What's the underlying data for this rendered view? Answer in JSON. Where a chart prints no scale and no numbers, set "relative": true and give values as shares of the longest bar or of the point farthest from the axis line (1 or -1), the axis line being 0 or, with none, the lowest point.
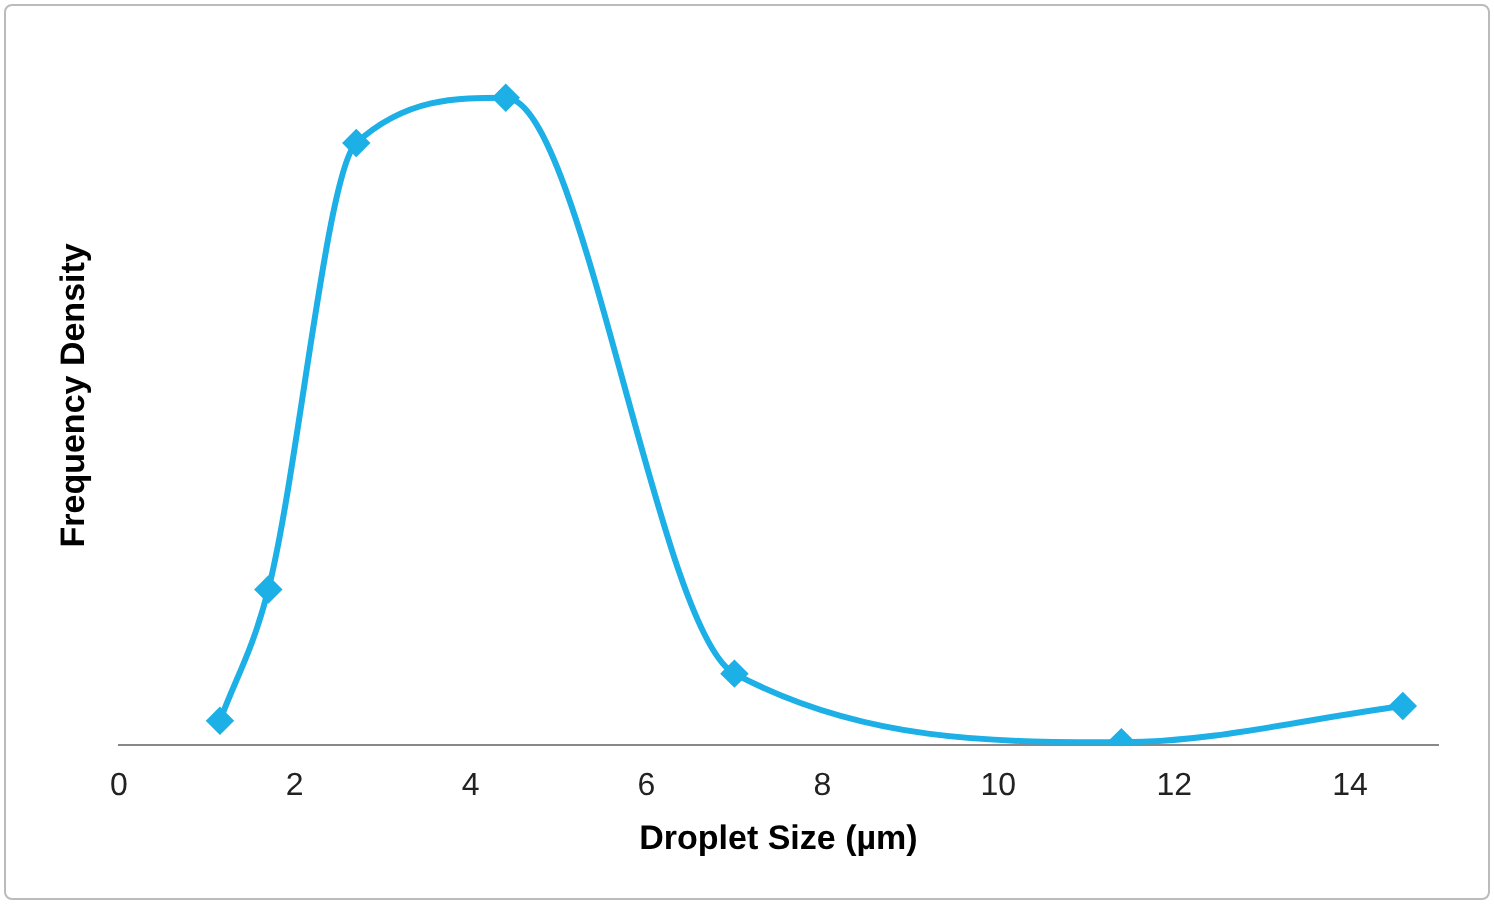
{
  "chart_data": {
    "type": "line",
    "xlabel": "Droplet Size (µm)",
    "ylabel": "Frequency Density",
    "relative": true,
    "x": [
      1.15,
      1.7,
      2.7,
      4.4,
      7.0,
      11.4,
      14.6
    ],
    "series": [
      {
        "color": "#1cb0e6",
        "values": [
          0.037,
          0.24,
          0.93,
          1,
          0.11,
          0.004,
          0.06
        ]
      }
    ],
    "xlim": [
      0,
      15
    ],
    "xticks": [
      0,
      2,
      4,
      6,
      8,
      10,
      12,
      14
    ],
    "grid": false,
    "legend": false,
    "marker": "diamond",
    "line_style": "solid"
  }
}
